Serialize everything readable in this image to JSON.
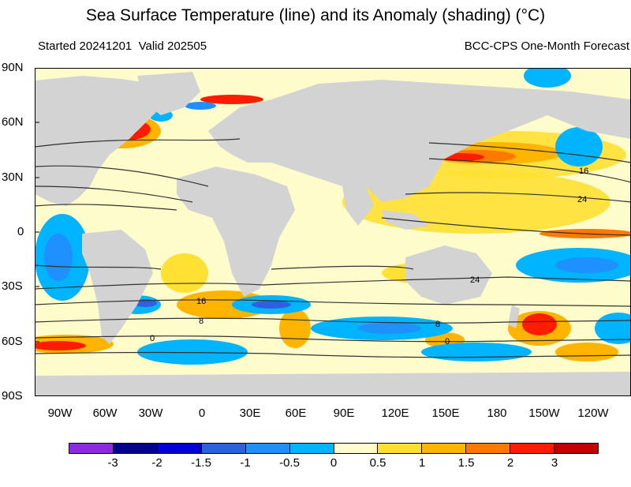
{
  "title": "Sea Surface Temperature (line) and its Anomaly (shading) (°C)",
  "subtitle_left": "Started 20241201  Valid 202505",
  "subtitle_right": "BCC-CPS One-Month Forecast",
  "lat_labels": [
    "90N",
    "60N",
    "30N",
    "0",
    "30S",
    "60S",
    "90S"
  ],
  "lon_labels": [
    "90W",
    "60W",
    "30W",
    "0",
    "30E",
    "60E",
    "90E",
    "120E",
    "150E",
    "180",
    "150W",
    "120W"
  ],
  "contour_labels": [
    "16",
    "24",
    "24",
    "16",
    "8",
    "0",
    "8",
    "0"
  ],
  "colorbar": {
    "tick_labels": [
      "-3",
      "-2",
      "-1.5",
      "-1",
      "-0.5",
      "0",
      "0.5",
      "1",
      "1.5",
      "2",
      "3"
    ],
    "colors": [
      "#8a2be2",
      "#000090",
      "#0000d0",
      "#3060e0",
      "#1e90ff",
      "#00b4ff",
      "#fffccc",
      "#ffe033",
      "#ffb400",
      "#ff7800",
      "#ff1c00",
      "#c00000"
    ]
  },
  "colors": {
    "land": "#d3d3d3",
    "ocean_base": "#fffccc",
    "contour": "#333333"
  }
}
